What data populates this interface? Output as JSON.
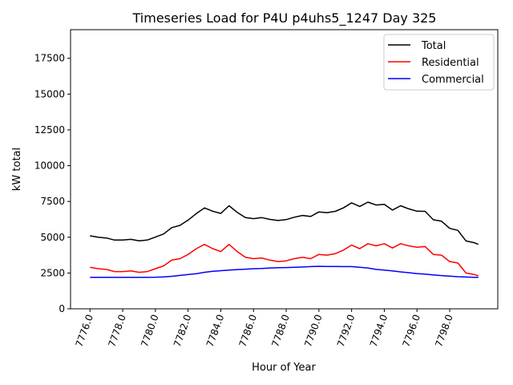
{
  "chart_data": {
    "type": "line",
    "title": "Timeseries Load for P4U p4uhs5_1247  Day 325",
    "xlabel": "Hour of Year",
    "ylabel": "kW total",
    "xlim": [
      7774.81,
      7800.94
    ],
    "ylim": [
      0,
      19500
    ],
    "grid": false,
    "legend_position": "top-right",
    "xticks": [
      7776,
      7778,
      7780,
      7782,
      7784,
      7786,
      7788,
      7790,
      7792,
      7794,
      7796,
      7798
    ],
    "xtick_labels": [
      "7776.0",
      "7778.0",
      "7780.0",
      "7782.0",
      "7784.0",
      "7786.0",
      "7788.0",
      "7790.0",
      "7792.0",
      "7794.0",
      "7796.0",
      "7798.0"
    ],
    "yticks": [
      0,
      2500,
      5000,
      7500,
      10000,
      12500,
      15000,
      17500
    ],
    "ytick_labels": [
      "0",
      "2500",
      "5000",
      "7500",
      "10000",
      "12500",
      "15000",
      "17500"
    ],
    "x": [
      7776,
      7776.5,
      7777,
      7777.5,
      7778,
      7778.5,
      7779,
      7779.5,
      7780,
      7780.5,
      7781,
      7781.5,
      7782,
      7782.5,
      7783,
      7783.5,
      7784,
      7784.5,
      7785,
      7785.5,
      7786,
      7786.5,
      7787,
      7787.5,
      7788,
      7788.5,
      7789,
      7789.5,
      7790,
      7790.5,
      7791,
      7791.5,
      7792,
      7792.5,
      7793,
      7793.5,
      7794,
      7794.5,
      7795,
      7795.5,
      7796,
      7796.5,
      7797,
      7797.5,
      7798,
      7798.5,
      7799,
      7799.5,
      7799.75
    ],
    "series": [
      {
        "name": "Total",
        "color": "#000000",
        "values": [
          5100,
          5000,
          4950,
          4800,
          4800,
          4850,
          4750,
          4800,
          5010,
          5230,
          5670,
          5830,
          6200,
          6650,
          7050,
          6820,
          6660,
          7200,
          6740,
          6370,
          6300,
          6370,
          6250,
          6170,
          6230,
          6400,
          6520,
          6450,
          6770,
          6720,
          6810,
          7050,
          7400,
          7150,
          7450,
          7250,
          7300,
          6900,
          7200,
          6980,
          6820,
          6810,
          6220,
          6120,
          5620,
          5480,
          4740,
          4620,
          4500
        ]
      },
      {
        "name": "Residential",
        "color": "#ff0000",
        "values": [
          2900,
          2800,
          2750,
          2600,
          2600,
          2650,
          2550,
          2600,
          2800,
          3000,
          3400,
          3500,
          3800,
          4200,
          4500,
          4200,
          4000,
          4500,
          4000,
          3600,
          3500,
          3550,
          3400,
          3300,
          3350,
          3500,
          3600,
          3500,
          3800,
          3750,
          3850,
          4100,
          4450,
          4200,
          4550,
          4400,
          4550,
          4250,
          4550,
          4400,
          4300,
          4350,
          3800,
          3750,
          3300,
          3200,
          2500,
          2400,
          2300
        ]
      },
      {
        "name": "Commercial",
        "color": "#0000ff",
        "values": [
          2200,
          2200,
          2200,
          2200,
          2200,
          2200,
          2200,
          2200,
          2210,
          2230,
          2270,
          2330,
          2400,
          2450,
          2550,
          2620,
          2660,
          2700,
          2740,
          2770,
          2800,
          2820,
          2850,
          2870,
          2880,
          2900,
          2920,
          2950,
          2970,
          2960,
          2960,
          2950,
          2950,
          2900,
          2850,
          2750,
          2700,
          2650,
          2580,
          2520,
          2460,
          2420,
          2370,
          2320,
          2280,
          2240,
          2220,
          2200,
          2200
        ]
      }
    ]
  }
}
